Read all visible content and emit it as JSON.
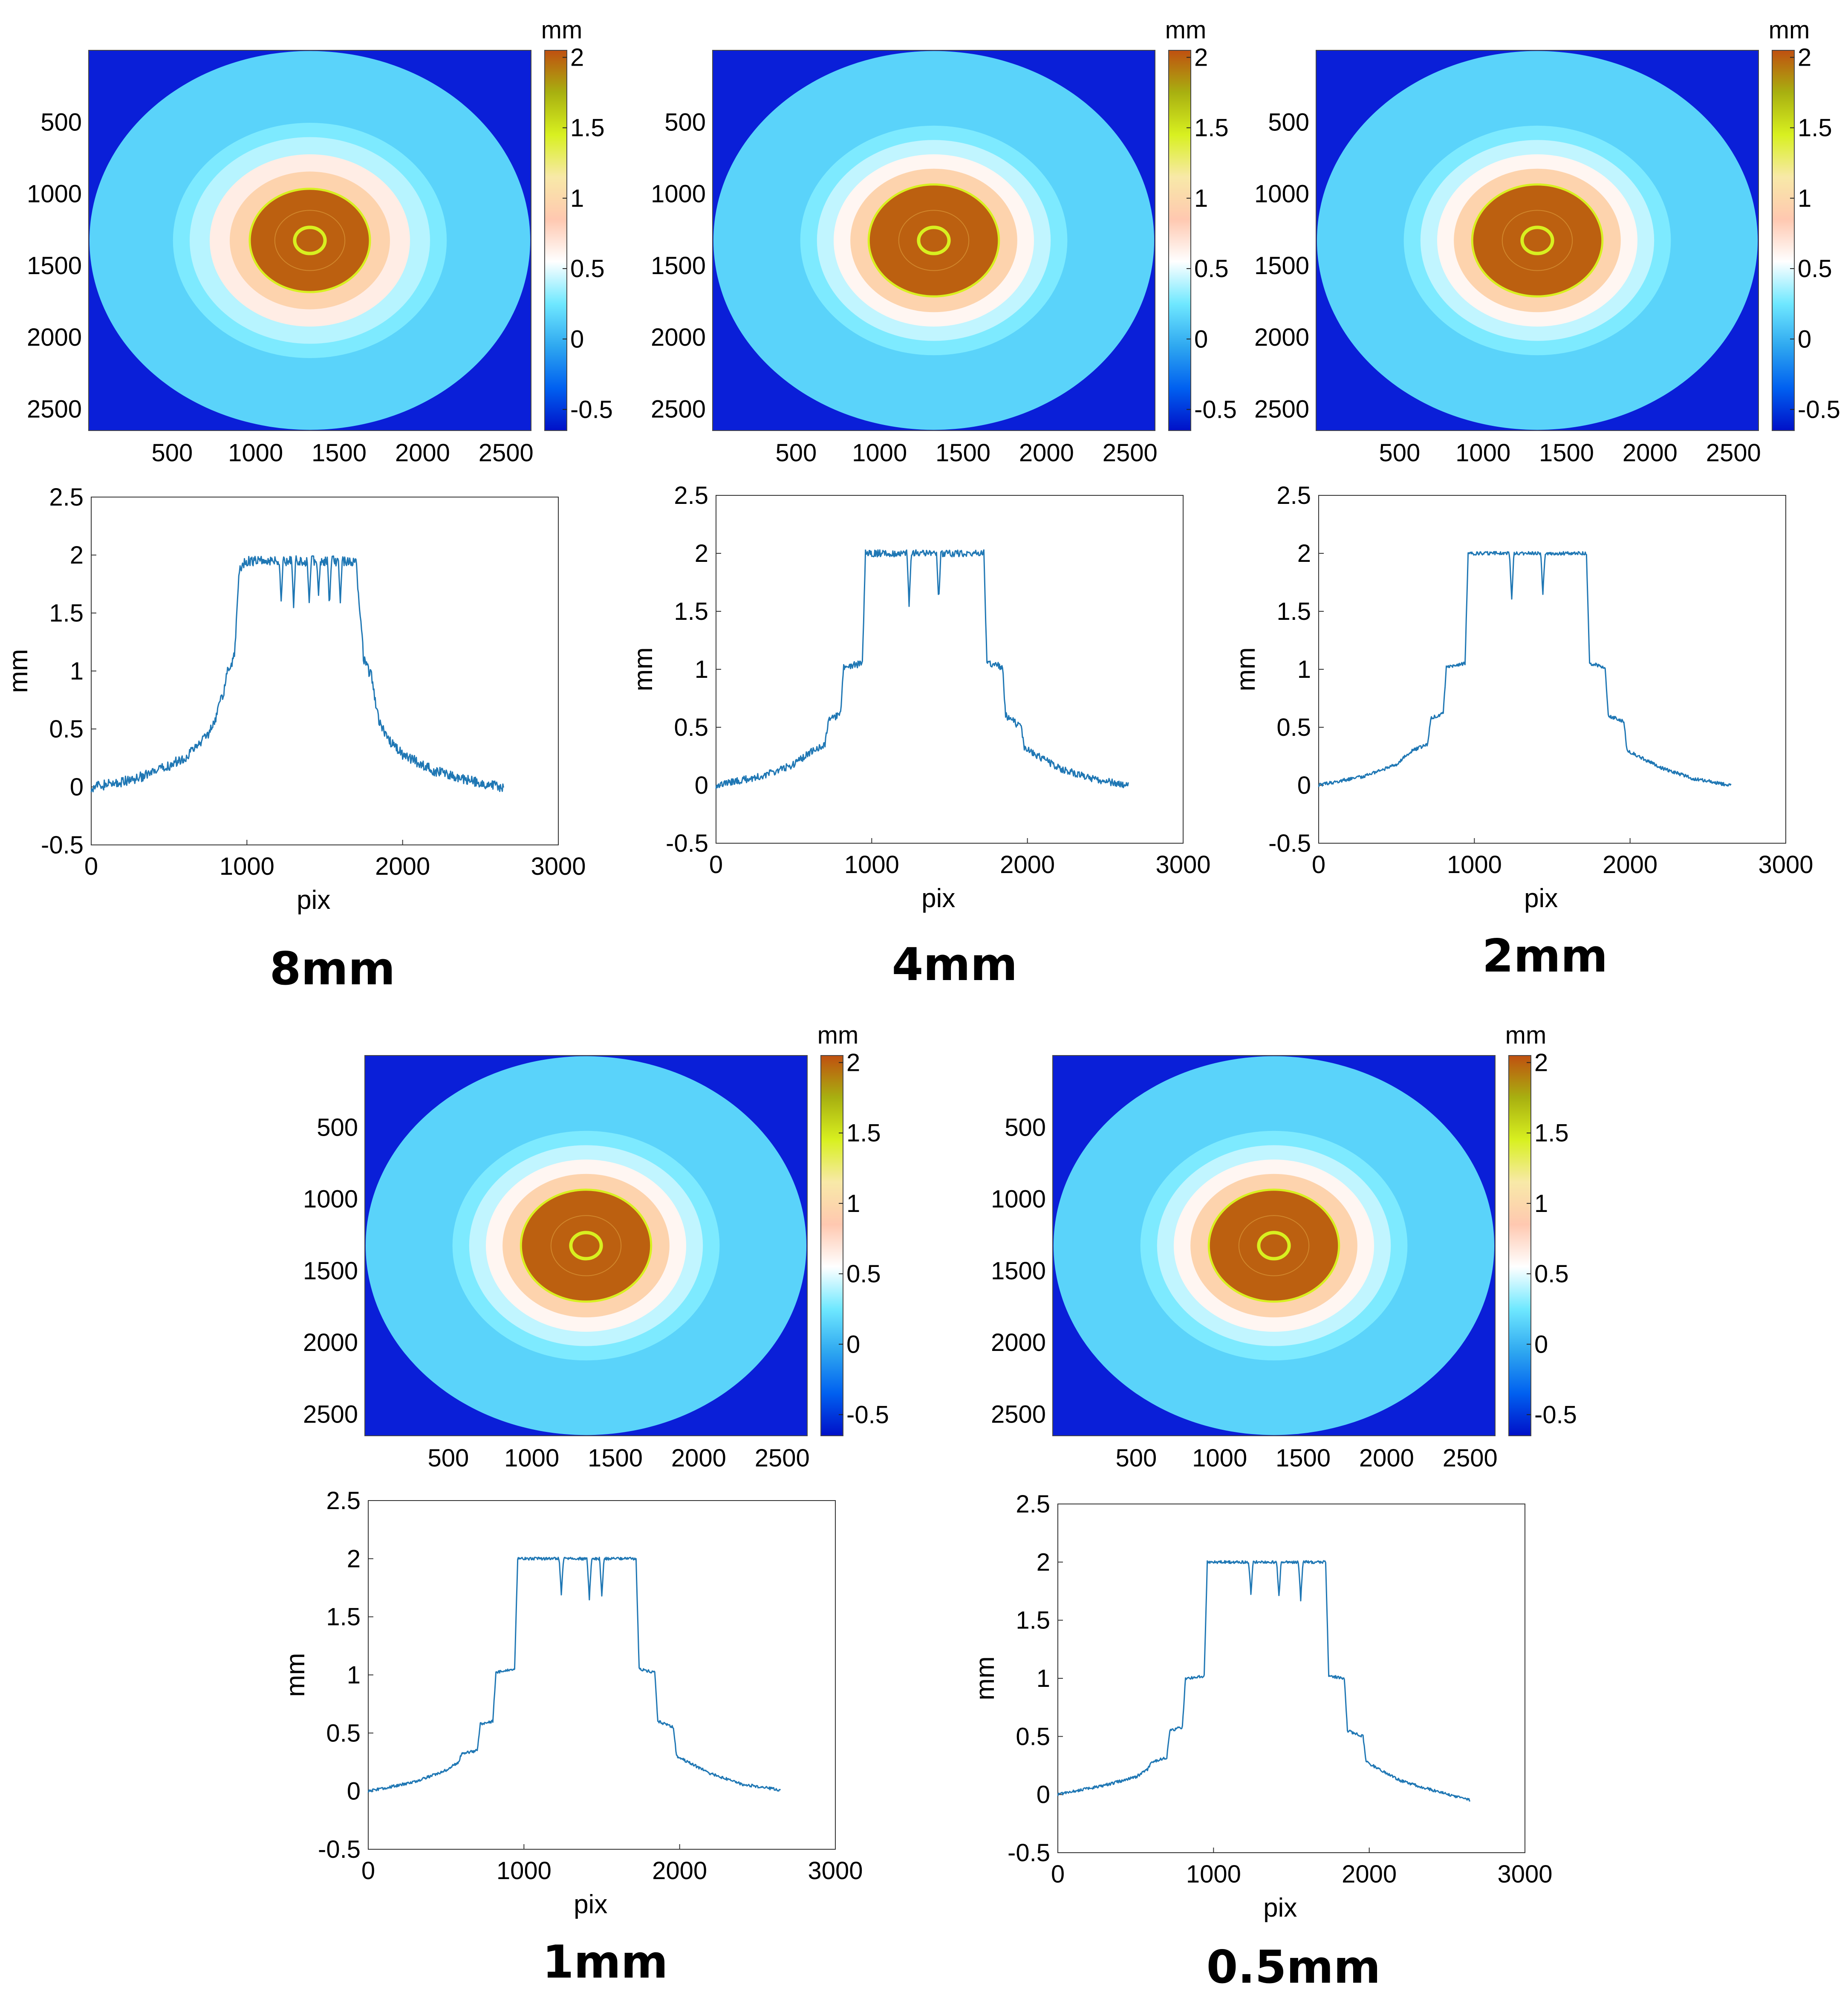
{
  "figure": {
    "panels": [
      {
        "id": "p8",
        "label": "8mm"
      },
      {
        "id": "p4",
        "label": "4mm"
      },
      {
        "id": "p2",
        "label": "2mm"
      },
      {
        "id": "p1",
        "label": "1mm"
      },
      {
        "id": "p05",
        "label": "0.5mm"
      }
    ]
  },
  "colors": {
    "line": "#1f77b4",
    "heat_background": "#0a1fd8",
    "colormap": [
      "#0010c8",
      "#0060f0",
      "#2fa8f0",
      "#6fe8ff",
      "#ffffff",
      "#ffc8b0",
      "#f8e9a8",
      "#d8f020",
      "#a8b010",
      "#c05010"
    ]
  },
  "chart_data": [
    {
      "panel": "8mm",
      "type": "heatmap",
      "title": "8mm",
      "colorbar_label": "mm",
      "colorbar_range": [
        -0.65,
        2.05
      ],
      "colorbar_ticks": [
        "2",
        "1.5",
        "1",
        "0.5",
        "0",
        "-0.5"
      ],
      "x_ticks": [
        "500",
        "1000",
        "1500",
        "2000",
        "2500"
      ],
      "y_ticks": [
        "500",
        "1000",
        "1500",
        "2000",
        "2500"
      ],
      "xlim": [
        0,
        2650
      ],
      "ylim": [
        0,
        2650
      ],
      "rings": [
        {
          "rx": 1320,
          "ry": 1320,
          "value": 0.15
        },
        {
          "rx": 820,
          "ry": 820,
          "value": 0.28
        },
        {
          "rx": 720,
          "ry": 720,
          "value": 0.4
        },
        {
          "rx": 600,
          "ry": 600,
          "value": 0.65
        },
        {
          "rx": 480,
          "ry": 480,
          "value": 0.95
        },
        {
          "rx": 360,
          "ry": 360,
          "value": 2.0
        }
      ]
    },
    {
      "panel": "8mm",
      "type": "line",
      "xlabel": "pix",
      "ylabel": "mm",
      "xlim": [
        0,
        3000
      ],
      "ylim": [
        -0.5,
        2.5
      ],
      "x_ticks": [
        "0",
        "1000",
        "2000",
        "3000"
      ],
      "y_ticks": [
        "2.5",
        "2",
        "1.5",
        "1",
        "0.5",
        "0",
        "-0.5"
      ],
      "noise": 0.045,
      "x": [
        0,
        200,
        400,
        600,
        700,
        760,
        800,
        850,
        880,
        920,
        950,
        1000,
        1700,
        1750,
        1800,
        1850,
        1900,
        2000,
        2200,
        2400,
        2600,
        2650
      ],
      "y": [
        0.0,
        0.04,
        0.12,
        0.25,
        0.38,
        0.48,
        0.6,
        0.82,
        1.02,
        1.12,
        1.88,
        1.95,
        1.95,
        1.1,
        0.95,
        0.55,
        0.42,
        0.28,
        0.14,
        0.06,
        0.01,
        0.0
      ],
      "dips": [
        [
          1220,
          1.6
        ],
        [
          1300,
          1.55
        ],
        [
          1400,
          1.58
        ],
        [
          1460,
          1.65
        ],
        [
          1530,
          1.55
        ],
        [
          1600,
          1.6
        ]
      ]
    },
    {
      "panel": "4mm",
      "type": "heatmap",
      "title": "4mm",
      "colorbar_label": "mm",
      "colorbar_range": [
        -0.65,
        2.05
      ],
      "colorbar_ticks": [
        "2",
        "1.5",
        "1",
        "0.5",
        "0",
        "-0.5"
      ],
      "x_ticks": [
        "500",
        "1000",
        "1500",
        "2000",
        "2500"
      ],
      "y_ticks": [
        "500",
        "1000",
        "1500",
        "2000",
        "2500"
      ],
      "xlim": [
        0,
        2650
      ],
      "ylim": [
        0,
        2650
      ],
      "rings": [
        {
          "rx": 1320,
          "ry": 1320,
          "value": 0.15
        },
        {
          "rx": 800,
          "ry": 800,
          "value": 0.28
        },
        {
          "rx": 700,
          "ry": 700,
          "value": 0.42
        },
        {
          "rx": 600,
          "ry": 600,
          "value": 0.6
        },
        {
          "rx": 500,
          "ry": 500,
          "value": 0.95
        },
        {
          "rx": 390,
          "ry": 390,
          "value": 2.0
        }
      ]
    },
    {
      "panel": "4mm",
      "type": "line",
      "xlabel": "pix",
      "ylabel": "mm",
      "xlim": [
        0,
        3000
      ],
      "ylim": [
        -0.5,
        2.5
      ],
      "x_ticks": [
        "0",
        "1000",
        "2000",
        "3000"
      ],
      "y_ticks": [
        "2.5",
        "2",
        "1.5",
        "1",
        "0.5",
        "0",
        "-0.5"
      ],
      "noise": 0.03,
      "x": [
        0,
        300,
        500,
        600,
        700,
        720,
        800,
        820,
        940,
        960,
        1720,
        1740,
        1840,
        1860,
        1960,
        1980,
        2200,
        2400,
        2600,
        2650
      ],
      "y": [
        0.0,
        0.08,
        0.18,
        0.28,
        0.35,
        0.55,
        0.62,
        1.02,
        1.05,
        2.0,
        2.0,
        1.05,
        1.02,
        0.6,
        0.5,
        0.32,
        0.15,
        0.06,
        0.01,
        0.0
      ],
      "dips": [
        [
          1240,
          1.55
        ],
        [
          1430,
          1.58
        ]
      ]
    },
    {
      "panel": "2mm",
      "type": "heatmap",
      "title": "2mm",
      "colorbar_label": "mm",
      "colorbar_range": [
        -0.65,
        2.05
      ],
      "colorbar_ticks": [
        "2",
        "1.5",
        "1",
        "0.5",
        "0",
        "-0.5"
      ],
      "x_ticks": [
        "500",
        "1000",
        "1500",
        "2000",
        "2500"
      ],
      "y_ticks": [
        "500",
        "1000",
        "1500",
        "2000",
        "2500"
      ],
      "xlim": [
        0,
        2650
      ],
      "ylim": [
        0,
        2650
      ],
      "rings": [
        {
          "rx": 1320,
          "ry": 1320,
          "value": 0.15
        },
        {
          "rx": 800,
          "ry": 800,
          "value": 0.28
        },
        {
          "rx": 700,
          "ry": 700,
          "value": 0.42
        },
        {
          "rx": 600,
          "ry": 600,
          "value": 0.6
        },
        {
          "rx": 500,
          "ry": 500,
          "value": 0.95
        },
        {
          "rx": 390,
          "ry": 390,
          "value": 2.0
        }
      ]
    },
    {
      "panel": "2mm",
      "type": "line",
      "xlabel": "pix",
      "ylabel": "mm",
      "xlim": [
        0,
        3000
      ],
      "ylim": [
        -0.5,
        2.5
      ],
      "x_ticks": [
        "0",
        "1000",
        "2000",
        "3000"
      ],
      "y_ticks": [
        "2.5",
        "2",
        "1.5",
        "1",
        "0.5",
        "0",
        "-0.5"
      ],
      "noise": 0.015,
      "x": [
        0,
        300,
        500,
        600,
        700,
        720,
        800,
        820,
        940,
        960,
        1720,
        1740,
        1840,
        1860,
        1960,
        1980,
        2200,
        2400,
        2600,
        2650
      ],
      "y": [
        0.0,
        0.08,
        0.18,
        0.3,
        0.35,
        0.58,
        0.62,
        1.02,
        1.05,
        2.0,
        2.0,
        1.05,
        1.02,
        0.6,
        0.55,
        0.3,
        0.15,
        0.06,
        0.01,
        0.0
      ],
      "dips": [
        [
          1240,
          1.6
        ],
        [
          1440,
          1.65
        ]
      ]
    },
    {
      "panel": "1mm",
      "type": "heatmap",
      "title": "1mm",
      "colorbar_label": "mm",
      "colorbar_range": [
        -0.65,
        2.05
      ],
      "colorbar_ticks": [
        "2",
        "1.5",
        "1",
        "0.5",
        "0",
        "-0.5"
      ],
      "x_ticks": [
        "500",
        "1000",
        "1500",
        "2000",
        "2500"
      ],
      "y_ticks": [
        "500",
        "1000",
        "1500",
        "2000",
        "2500"
      ],
      "xlim": [
        0,
        2650
      ],
      "ylim": [
        0,
        2650
      ],
      "rings": [
        {
          "rx": 1320,
          "ry": 1320,
          "value": 0.15
        },
        {
          "rx": 800,
          "ry": 800,
          "value": 0.28
        },
        {
          "rx": 700,
          "ry": 700,
          "value": 0.42
        },
        {
          "rx": 600,
          "ry": 600,
          "value": 0.6
        },
        {
          "rx": 500,
          "ry": 500,
          "value": 0.95
        },
        {
          "rx": 390,
          "ry": 390,
          "value": 2.0
        }
      ]
    },
    {
      "panel": "1mm",
      "type": "line",
      "xlabel": "pix",
      "ylabel": "mm",
      "xlim": [
        0,
        3000
      ],
      "ylim": [
        -0.5,
        2.5
      ],
      "x_ticks": [
        "0",
        "1000",
        "2000",
        "3000"
      ],
      "y_ticks": [
        "2.5",
        "2",
        "1.5",
        "1",
        "0.5",
        "0",
        "-0.5"
      ],
      "noise": 0.012,
      "x": [
        0,
        300,
        500,
        580,
        600,
        700,
        720,
        800,
        820,
        940,
        960,
        1720,
        1740,
        1840,
        1860,
        1960,
        1980,
        2200,
        2400,
        2600,
        2650
      ],
      "y": [
        0.0,
        0.08,
        0.18,
        0.25,
        0.32,
        0.35,
        0.58,
        0.6,
        1.02,
        1.05,
        2.0,
        2.0,
        1.05,
        1.02,
        0.6,
        0.55,
        0.3,
        0.15,
        0.06,
        0.02,
        0.01
      ],
      "dips": [
        [
          1240,
          1.7
        ],
        [
          1420,
          1.65
        ],
        [
          1500,
          1.68
        ]
      ]
    },
    {
      "panel": "0.5mm",
      "type": "heatmap",
      "title": "0.5mm",
      "colorbar_label": "mm",
      "colorbar_range": [
        -0.65,
        2.05
      ],
      "colorbar_ticks": [
        "2",
        "1.5",
        "1",
        "0.5",
        "0",
        "-0.5"
      ],
      "x_ticks": [
        "500",
        "1000",
        "1500",
        "2000",
        "2500"
      ],
      "y_ticks": [
        "500",
        "1000",
        "1500",
        "2000",
        "2500"
      ],
      "xlim": [
        0,
        2650
      ],
      "ylim": [
        0,
        2650
      ],
      "rings": [
        {
          "rx": 1320,
          "ry": 1320,
          "value": 0.15
        },
        {
          "rx": 800,
          "ry": 800,
          "value": 0.28
        },
        {
          "rx": 700,
          "ry": 700,
          "value": 0.42
        },
        {
          "rx": 600,
          "ry": 600,
          "value": 0.6
        },
        {
          "rx": 500,
          "ry": 500,
          "value": 0.95
        },
        {
          "rx": 390,
          "ry": 390,
          "value": 2.0
        }
      ]
    },
    {
      "panel": "0.5mm",
      "type": "line",
      "xlabel": "pix",
      "ylabel": "mm",
      "xlim": [
        0,
        3000
      ],
      "ylim": [
        -0.5,
        2.5
      ],
      "x_ticks": [
        "0",
        "1000",
        "2000",
        "3000"
      ],
      "y_ticks": [
        "2.5",
        "2",
        "1.5",
        "1",
        "0.5",
        "0",
        "-0.5"
      ],
      "noise": 0.012,
      "x": [
        0,
        300,
        500,
        580,
        600,
        700,
        720,
        800,
        820,
        940,
        960,
        1720,
        1740,
        1840,
        1860,
        1960,
        1980,
        2200,
        2400,
        2600,
        2650
      ],
      "y": [
        0.0,
        0.08,
        0.15,
        0.22,
        0.28,
        0.32,
        0.55,
        0.58,
        1.0,
        1.02,
        2.0,
        2.0,
        1.02,
        1.0,
        0.55,
        0.5,
        0.28,
        0.12,
        0.04,
        -0.03,
        -0.05
      ],
      "dips": [
        [
          1240,
          1.72
        ],
        [
          1420,
          1.7
        ],
        [
          1560,
          1.68
        ]
      ]
    }
  ]
}
